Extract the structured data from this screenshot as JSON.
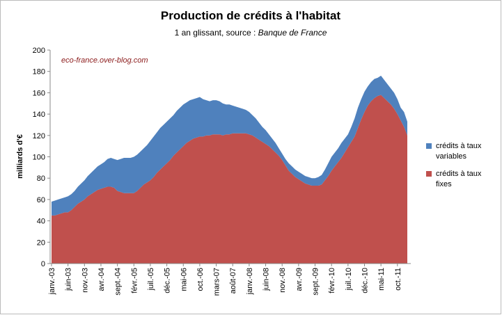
{
  "chart_data": {
    "type": "stacked_area",
    "title": "Production de crédits à l'habitat",
    "subtitle": "1 an glissant, source :",
    "subtitle_source": "Banque de France",
    "annotation": "eco-france.over-blog.com",
    "ylabel": "milliards d'€",
    "ylim": [
      0,
      200
    ],
    "yticks": [
      0,
      20,
      40,
      60,
      80,
      100,
      120,
      140,
      160,
      180,
      200
    ],
    "grid": false,
    "legend": "right",
    "categories": [
      "janv.-03",
      null,
      null,
      null,
      null,
      "juin-03",
      null,
      null,
      null,
      null,
      "nov.-03",
      null,
      null,
      null,
      null,
      "avr.-04",
      null,
      null,
      null,
      null,
      "sept.-04",
      null,
      null,
      null,
      null,
      "févr.-05",
      null,
      null,
      null,
      null,
      "juil.-05",
      null,
      null,
      null,
      null,
      "déc.-05",
      null,
      null,
      null,
      null,
      "mai-06",
      null,
      null,
      null,
      null,
      "oct.-06",
      null,
      null,
      null,
      null,
      "mars-07",
      null,
      null,
      null,
      null,
      "août-07",
      null,
      null,
      null,
      null,
      "janv.-08",
      null,
      null,
      null,
      null,
      "juin-08",
      null,
      null,
      null,
      null,
      "nov.-08",
      null,
      null,
      null,
      null,
      "avr.-09",
      null,
      null,
      null,
      null,
      "sept.-09",
      null,
      null,
      null,
      null,
      "févr.-10",
      null,
      null,
      null,
      null,
      "juil.-10",
      null,
      null,
      null,
      null,
      "déc.-10",
      null,
      null,
      null,
      null,
      "mai-11",
      null,
      null,
      null,
      null,
      "oct.-11",
      null,
      null,
      null
    ],
    "series": [
      {
        "name": "crédits à taux fixes",
        "color": "#c0504d",
        "values": [
          45,
          45,
          46,
          47,
          48,
          48,
          50,
          53,
          56,
          58,
          60,
          63,
          65,
          67,
          69,
          70,
          71,
          72,
          72,
          71,
          68,
          67,
          66,
          66,
          66,
          66,
          68,
          71,
          74,
          76,
          78,
          81,
          85,
          88,
          91,
          94,
          97,
          101,
          104,
          107,
          110,
          113,
          115,
          117,
          118,
          119,
          119,
          120,
          120,
          121,
          121,
          121,
          120,
          121,
          121,
          122,
          122,
          122,
          122,
          122,
          121,
          120,
          118,
          116,
          114,
          112,
          110,
          107,
          104,
          101,
          97,
          92,
          87,
          84,
          81,
          79,
          77,
          75,
          74,
          73,
          73,
          73,
          74,
          78,
          82,
          87,
          91,
          95,
          99,
          104,
          109,
          114,
          119,
          127,
          135,
          142,
          148,
          152,
          155,
          157,
          158,
          155,
          152,
          149,
          145,
          140,
          134,
          128,
          120
        ]
      },
      {
        "name": "crédits à taux variables",
        "color": "#4f81bd",
        "values": [
          13,
          14,
          14,
          14,
          14,
          15,
          15,
          15,
          16,
          17,
          18,
          19,
          20,
          21,
          22,
          23,
          24,
          26,
          27,
          27,
          29,
          31,
          33,
          33,
          33,
          34,
          34,
          34,
          34,
          35,
          37,
          38,
          38,
          39,
          39,
          39,
          39,
          38,
          39,
          39,
          39,
          38,
          38,
          37,
          37,
          37,
          35,
          33,
          32,
          32,
          32,
          31,
          30,
          28,
          28,
          26,
          25,
          24,
          23,
          22,
          21,
          19,
          18,
          16,
          14,
          13,
          11,
          10,
          9,
          7,
          6,
          6,
          7,
          7,
          7,
          7,
          7,
          7,
          7,
          7,
          7,
          8,
          9,
          10,
          12,
          13,
          13,
          13,
          14,
          13,
          12,
          14,
          17,
          19,
          19,
          19,
          18,
          18,
          18,
          17,
          18,
          17,
          16,
          15,
          15,
          14,
          12,
          14,
          13
        ]
      }
    ]
  }
}
